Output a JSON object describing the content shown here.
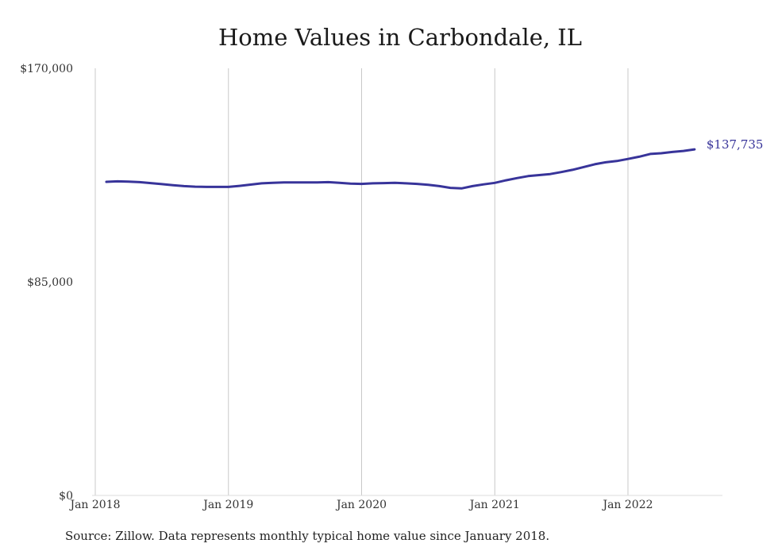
{
  "chart_data": {
    "type": "line",
    "title": "Home Values in Carbondale, IL",
    "xlabel": "",
    "ylabel": "",
    "ylim": [
      0,
      170000
    ],
    "yticks": [
      0,
      85000,
      170000
    ],
    "ytick_labels": [
      "$0",
      "$85,000",
      "$170,000"
    ],
    "xticks": [
      "2018-01",
      "2019-01",
      "2020-01",
      "2021-01",
      "2022-01"
    ],
    "xtick_labels": [
      "Jan 2018",
      "Jan 2019",
      "Jan 2020",
      "Jan 2021",
      "Jan 2022"
    ],
    "grid": "vertical",
    "line_color": "#38349a",
    "series": [
      {
        "x": [
          "2018-02",
          "2018-03",
          "2018-04",
          "2018-05",
          "2018-06",
          "2018-07",
          "2018-08",
          "2018-09",
          "2018-10",
          "2018-11",
          "2018-12",
          "2019-01",
          "2019-02",
          "2019-03",
          "2019-04",
          "2019-05",
          "2019-06",
          "2019-07",
          "2019-08",
          "2019-09",
          "2019-10",
          "2019-11",
          "2019-12",
          "2020-01",
          "2020-02",
          "2020-03",
          "2020-04",
          "2020-05",
          "2020-06",
          "2020-07",
          "2020-08",
          "2020-09",
          "2020-10",
          "2020-11",
          "2020-12",
          "2021-01",
          "2021-02",
          "2021-03",
          "2021-04",
          "2021-05",
          "2021-06",
          "2021-07",
          "2021-08",
          "2021-09",
          "2021-10",
          "2021-11",
          "2021-12",
          "2022-01",
          "2022-02",
          "2022-03",
          "2022-04",
          "2022-05",
          "2022-06",
          "2022-07"
        ],
        "values": [
          124800,
          125000,
          124900,
          124700,
          124300,
          123900,
          123500,
          123100,
          122900,
          122800,
          122800,
          122800,
          123200,
          123700,
          124200,
          124400,
          124600,
          124600,
          124600,
          124600,
          124700,
          124400,
          124100,
          124000,
          124200,
          124300,
          124400,
          124200,
          124000,
          123600,
          123100,
          122400,
          122200,
          123100,
          123800,
          124400,
          125400,
          126300,
          127100,
          127500,
          127900,
          128700,
          129600,
          130700,
          131800,
          132600,
          133100,
          133900,
          134800,
          135900,
          136200,
          136700,
          137100,
          137735
        ]
      }
    ],
    "end_label": "$137,735"
  },
  "source_note": "Source: Zillow. Data represents monthly typical home value since January 2018."
}
